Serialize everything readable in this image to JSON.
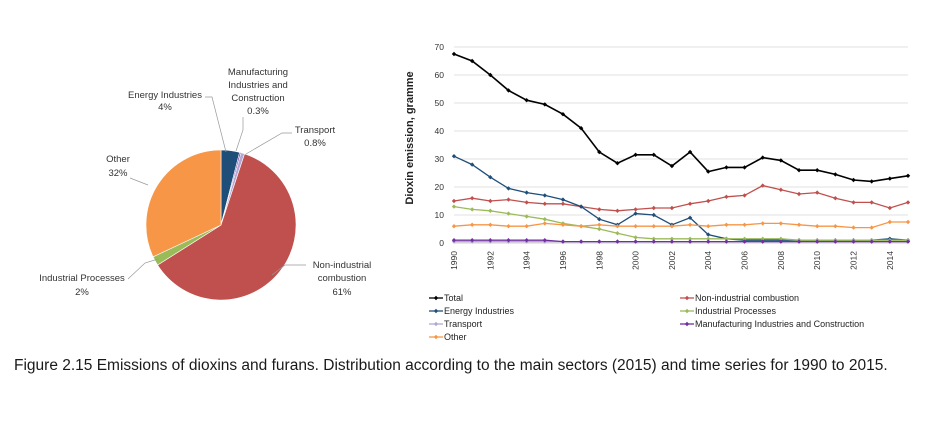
{
  "caption": "Figure 2.15   Emissions of dioxins and furans. Distribution according to the main sectors (2015) and time series for 1990 to 2015.",
  "chart_data": [
    {
      "type": "pie",
      "title": "",
      "slices": [
        {
          "name": "Energy Industries",
          "value": 4,
          "label": "4%",
          "color": "#1f4e79"
        },
        {
          "name": "Manufacturing Industries and Construction",
          "value": 0.3,
          "label": "0.3%",
          "color": "#7030a0"
        },
        {
          "name": "Transport",
          "value": 0.8,
          "label": "0.8%",
          "color": "#b4a7d6"
        },
        {
          "name": "Non-industrial combustion",
          "value": 61,
          "label": "61%",
          "color": "#c0504d"
        },
        {
          "name": "Industrial Processes",
          "value": 2,
          "label": "2%",
          "color": "#9bbb59"
        },
        {
          "name": "Other",
          "value": 32,
          "label": "32%",
          "color": "#f79646"
        }
      ],
      "label_text": {
        "energy": [
          "Energy Industries",
          "4%"
        ],
        "manufacturing": [
          "Manufacturing",
          "Industries and",
          "Construction",
          "0.3%"
        ],
        "transport": [
          "Transport",
          "0.8%"
        ],
        "noncombustion": [
          "Non-industrial",
          "combustion",
          "61%"
        ],
        "industrial": [
          "Industrial Processes",
          "2%"
        ],
        "other": [
          "Other",
          "32%"
        ]
      }
    },
    {
      "type": "line",
      "title": "",
      "xlabel": "",
      "ylabel": "Dioxin emission, gramme",
      "ylim": [
        0,
        70
      ],
      "yticks": [
        0,
        10,
        20,
        30,
        40,
        50,
        60,
        70
      ],
      "xticks": [
        "1990",
        "1992",
        "1994",
        "1996",
        "1998",
        "2000",
        "2002",
        "2004",
        "2006",
        "2008",
        "2010",
        "2012",
        "2014"
      ],
      "x": [
        1990,
        1991,
        1992,
        1993,
        1994,
        1995,
        1996,
        1997,
        1998,
        1999,
        2000,
        2001,
        2002,
        2003,
        2004,
        2005,
        2006,
        2007,
        2008,
        2009,
        2010,
        2011,
        2012,
        2013,
        2014,
        2015
      ],
      "series": [
        {
          "name": "Total",
          "color": "#000000",
          "values": [
            67.5,
            65,
            60,
            54.5,
            51,
            49.5,
            46,
            41,
            32.5,
            28.5,
            31.5,
            31.5,
            27.5,
            32.5,
            25.5,
            27,
            27,
            30.5,
            29.5,
            26,
            26,
            24.5,
            22.5,
            22,
            23,
            24
          ]
        },
        {
          "name": "Non-industrial combustion",
          "color": "#c0504d",
          "values": [
            15,
            16,
            15,
            15.5,
            14.5,
            14,
            14,
            13,
            12,
            11.5,
            12,
            12.5,
            12.5,
            14,
            15,
            16.5,
            17,
            20.5,
            19,
            17.5,
            18,
            16,
            14.5,
            14.5,
            12.5,
            14.5
          ]
        },
        {
          "name": "Energy Industries",
          "color": "#1f4e79",
          "values": [
            31,
            28,
            23.5,
            19.5,
            18,
            17,
            15.5,
            13,
            8.5,
            6.5,
            10.5,
            10,
            6.5,
            9,
            3,
            1.5,
            1,
            1,
            1,
            1,
            1,
            1,
            1,
            1,
            1.5,
            1
          ]
        },
        {
          "name": "Industrial Processes",
          "color": "#9bbb59",
          "values": [
            13,
            12,
            11.5,
            10.5,
            9.5,
            8.5,
            7,
            6,
            5,
            3.5,
            2,
            1.5,
            1.5,
            1.5,
            1.5,
            1.5,
            1.5,
            1.5,
            1.5,
            1,
            1,
            1,
            1,
            1,
            1,
            1
          ]
        },
        {
          "name": "Transport",
          "color": "#b4a7d6",
          "values": [
            0.5,
            0.5,
            0.5,
            0.5,
            0.5,
            0.5,
            0.5,
            0.5,
            0.5,
            0.5,
            0.5,
            0.5,
            0.5,
            0.5,
            0.5,
            0.5,
            0.5,
            0.5,
            0.5,
            0.5,
            0.5,
            0.5,
            0.5,
            0.5,
            0.5,
            0.5
          ]
        },
        {
          "name": "Manufacturing Industries and Construction",
          "color": "#7030a0",
          "values": [
            1,
            1,
            1,
            1,
            1,
            1,
            0.5,
            0.5,
            0.5,
            0.5,
            0.5,
            0.5,
            0.5,
            0.5,
            0.5,
            0.5,
            0.5,
            0.5,
            0.5,
            0.5,
            0.5,
            0.5,
            0.5,
            0.5,
            0.5,
            0.5
          ]
        },
        {
          "name": "Other",
          "color": "#f79646",
          "values": [
            6,
            6.5,
            6.5,
            6,
            6,
            7,
            6.5,
            6,
            6.5,
            6,
            6,
            6,
            6,
            6.5,
            6,
            6.5,
            6.5,
            7,
            7,
            6.5,
            6,
            6,
            5.5,
            5.5,
            7.5,
            7.5
          ]
        }
      ],
      "legend_order": [
        "Total",
        "Non-industrial combustion",
        "Energy Industries",
        "Industrial Processes",
        "Transport",
        "Manufacturing Industries and Construction",
        "Other"
      ]
    }
  ]
}
